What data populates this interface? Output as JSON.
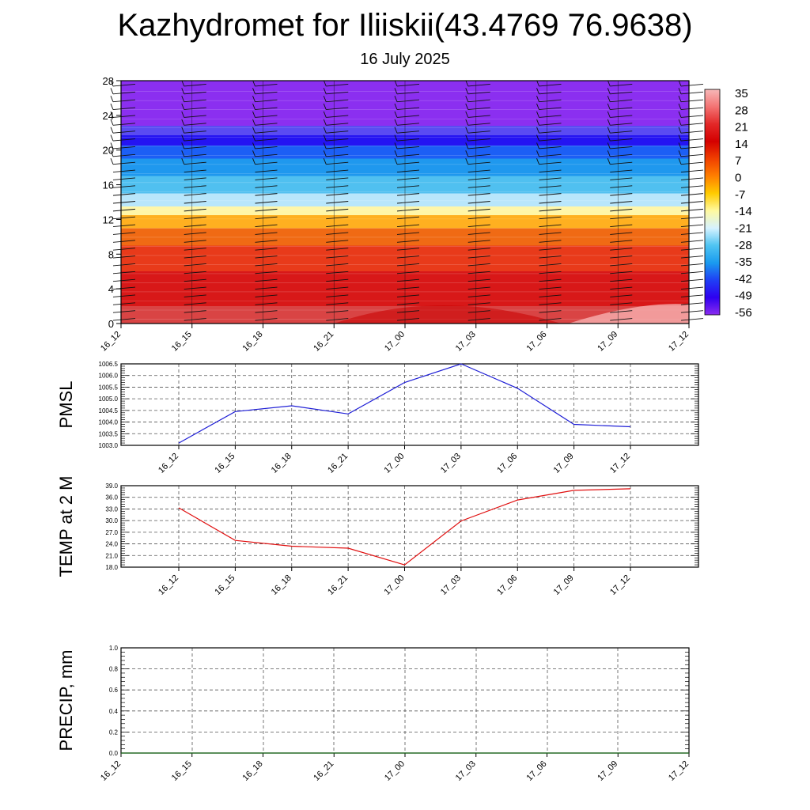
{
  "header": {
    "title": "Kazhydromet for Iliiskii(43.4769 76.9638)",
    "date": "16 July 2025"
  },
  "colors": {
    "pmsl_line": "#1f1fd6",
    "temp_line": "#e01010",
    "precip_line": "#1a6b1a",
    "axes": "#000000",
    "grid": "#555555"
  },
  "chart_data": [
    {
      "id": "cross-section",
      "type": "heatmap",
      "description_of_content": "time-height temperature contour with wind barbs",
      "x_ticks": [
        "16_12",
        "16_15",
        "16_18",
        "16_21",
        "17_00",
        "17_03",
        "17_06",
        "17_09",
        "17_12"
      ],
      "y_ticks": [
        0,
        4,
        8,
        12,
        16,
        20,
        24,
        28
      ],
      "ylim": [
        0,
        28
      ],
      "colorbar": {
        "labels": [
          "35",
          "28",
          "21",
          "14",
          "7",
          "0",
          "-7",
          "-14",
          "-21",
          "-28",
          "-35",
          "-42",
          "-49",
          "-56"
        ],
        "colors": [
          "#f7b8b8",
          "#f37373",
          "#e32828",
          "#d40000",
          "#f04000",
          "#ff7f00",
          "#ffcc00",
          "#fff9a0",
          "#d6f2ff",
          "#4fc4f2",
          "#1a9bef",
          "#1f3ff5",
          "#2e00f0",
          "#8b2cf0"
        ]
      },
      "layers": [
        {
          "h": [
            0,
            2
          ],
          "color": "#d94444"
        },
        {
          "h": [
            2,
            6
          ],
          "color": "#d81818"
        },
        {
          "h": [
            6,
            9
          ],
          "color": "#e83a1a"
        },
        {
          "h": [
            9,
            11
          ],
          "color": "#f06a14"
        },
        {
          "h": [
            11,
            12.5
          ],
          "color": "#ffb020"
        },
        {
          "h": [
            12.5,
            13.5
          ],
          "color": "#fff6a8"
        },
        {
          "h": [
            13.5,
            15
          ],
          "color": "#b8e6fb"
        },
        {
          "h": [
            15,
            17
          ],
          "color": "#50c0f0"
        },
        {
          "h": [
            17,
            19
          ],
          "color": "#1f98ee"
        },
        {
          "h": [
            19,
            20.5
          ],
          "color": "#1c5ff5"
        },
        {
          "h": [
            20.5,
            21.7
          ],
          "color": "#2414f2"
        },
        {
          "h": [
            21.7,
            22.8
          ],
          "color": "#5a4bf2"
        },
        {
          "h": [
            22.8,
            28
          ],
          "color": "#8b2ff0"
        }
      ]
    },
    {
      "id": "pmsl",
      "type": "line",
      "ylabel": "PMSL",
      "x": [
        "16_12",
        "16_15",
        "16_18",
        "16_21",
        "17_00",
        "17_03",
        "17_06",
        "17_09",
        "17_12"
      ],
      "values": [
        1003.1,
        1004.45,
        1004.7,
        1004.35,
        1005.7,
        1006.5,
        1005.45,
        1003.9,
        1003.8
      ],
      "ylim": [
        1003.0,
        1006.5
      ],
      "y_ticks": [
        "1003.0",
        "1003.5",
        "1004.0",
        "1004.5",
        "1005.0",
        "1005.5",
        "1006.0",
        "1006.5"
      ],
      "grid": true
    },
    {
      "id": "temp",
      "type": "line",
      "ylabel": "TEMP at 2 M",
      "x": [
        "16_12",
        "16_15",
        "16_18",
        "16_21",
        "17_00",
        "17_03",
        "17_06",
        "17_09",
        "17_12"
      ],
      "values": [
        33.3,
        24.9,
        23.4,
        22.9,
        18.6,
        29.9,
        35.3,
        37.8,
        38.2
      ],
      "ylim": [
        18.0,
        39.0
      ],
      "y_ticks": [
        "18.0",
        "21.0",
        "24.0",
        "27.0",
        "30.0",
        "33.0",
        "36.0",
        "39.0"
      ],
      "grid": true
    },
    {
      "id": "precip",
      "type": "line",
      "ylabel": "PRECIP, mm",
      "x": [
        "16_12",
        "16_15",
        "16_18",
        "16_21",
        "17_00",
        "17_03",
        "17_06",
        "17_09",
        "17_12"
      ],
      "values": [
        0,
        0,
        0,
        0,
        0,
        0,
        0,
        0,
        0
      ],
      "ylim": [
        0.0,
        1.0
      ],
      "y_ticks": [
        "0.0",
        "0.2",
        "0.4",
        "0.6",
        "0.8",
        "1.0"
      ],
      "grid": true
    }
  ]
}
